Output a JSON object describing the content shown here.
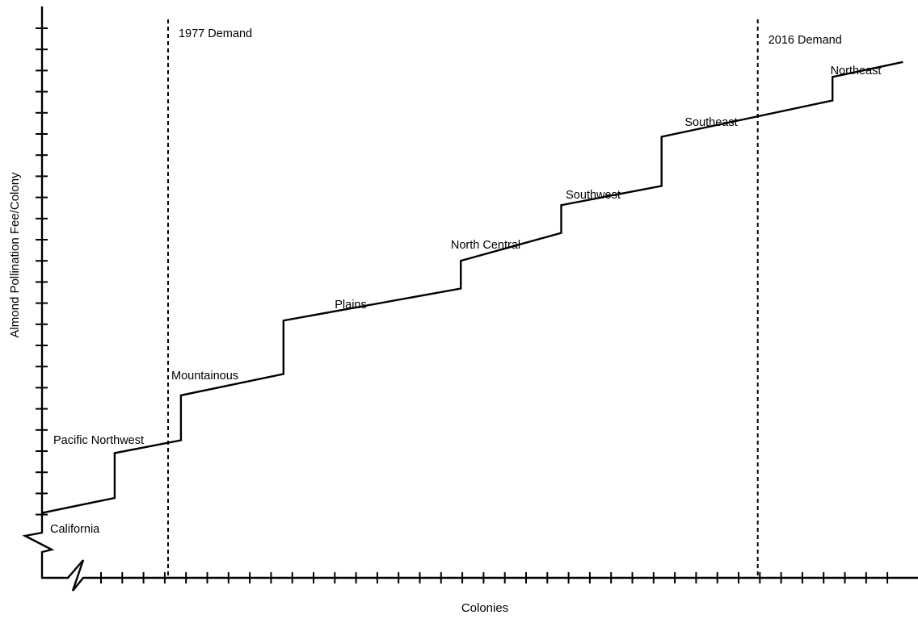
{
  "chart_data": {
    "type": "line",
    "title": "",
    "xlabel": "Colonies",
    "ylabel": "Almond Pollination Fee/Colony",
    "x_axis_break": true,
    "y_axis_break": true,
    "x_ticks_shown": true,
    "y_ticks_shown": true,
    "tick_labels_shown": false,
    "grid": false,
    "xlim": [
      0,
      41
    ],
    "ylim": [
      0,
      27
    ],
    "series": [
      {
        "points": [
          [
            0,
            3
          ],
          [
            3.4,
            3.7
          ],
          [
            3.4,
            5.8
          ],
          [
            6.5,
            6.4
          ],
          [
            6.5,
            8.5
          ],
          [
            11.3,
            9.5
          ],
          [
            11.3,
            12
          ],
          [
            19.6,
            13.5
          ],
          [
            19.6,
            14.8
          ],
          [
            24.3,
            16.1
          ],
          [
            24.3,
            17.4
          ],
          [
            29,
            18.3
          ],
          [
            29,
            20.6
          ],
          [
            37,
            22.3
          ],
          [
            37,
            23.4
          ],
          [
            40.3,
            24.1
          ]
        ]
      }
    ],
    "segments": [
      {
        "label": "California",
        "x_start": 0,
        "x_end": 3.4
      },
      {
        "label": "Pacific Northwest",
        "x_start": 3.4,
        "x_end": 6.5
      },
      {
        "label": "Mountainous",
        "x_start": 6.5,
        "x_end": 11.3
      },
      {
        "label": "Plains",
        "x_start": 11.3,
        "x_end": 19.6
      },
      {
        "label": "North Central",
        "x_start": 19.6,
        "x_end": 24.3
      },
      {
        "label": "Southwest",
        "x_start": 24.3,
        "x_end": 29
      },
      {
        "label": "Southeast",
        "x_start": 29,
        "x_end": 37
      },
      {
        "label": "Northeast",
        "x_start": 37,
        "x_end": 40.3
      }
    ],
    "demand_lines": [
      {
        "label": "1977 Demand",
        "x": 5.9
      },
      {
        "label": "2016 Demand",
        "x": 33.5
      }
    ]
  }
}
